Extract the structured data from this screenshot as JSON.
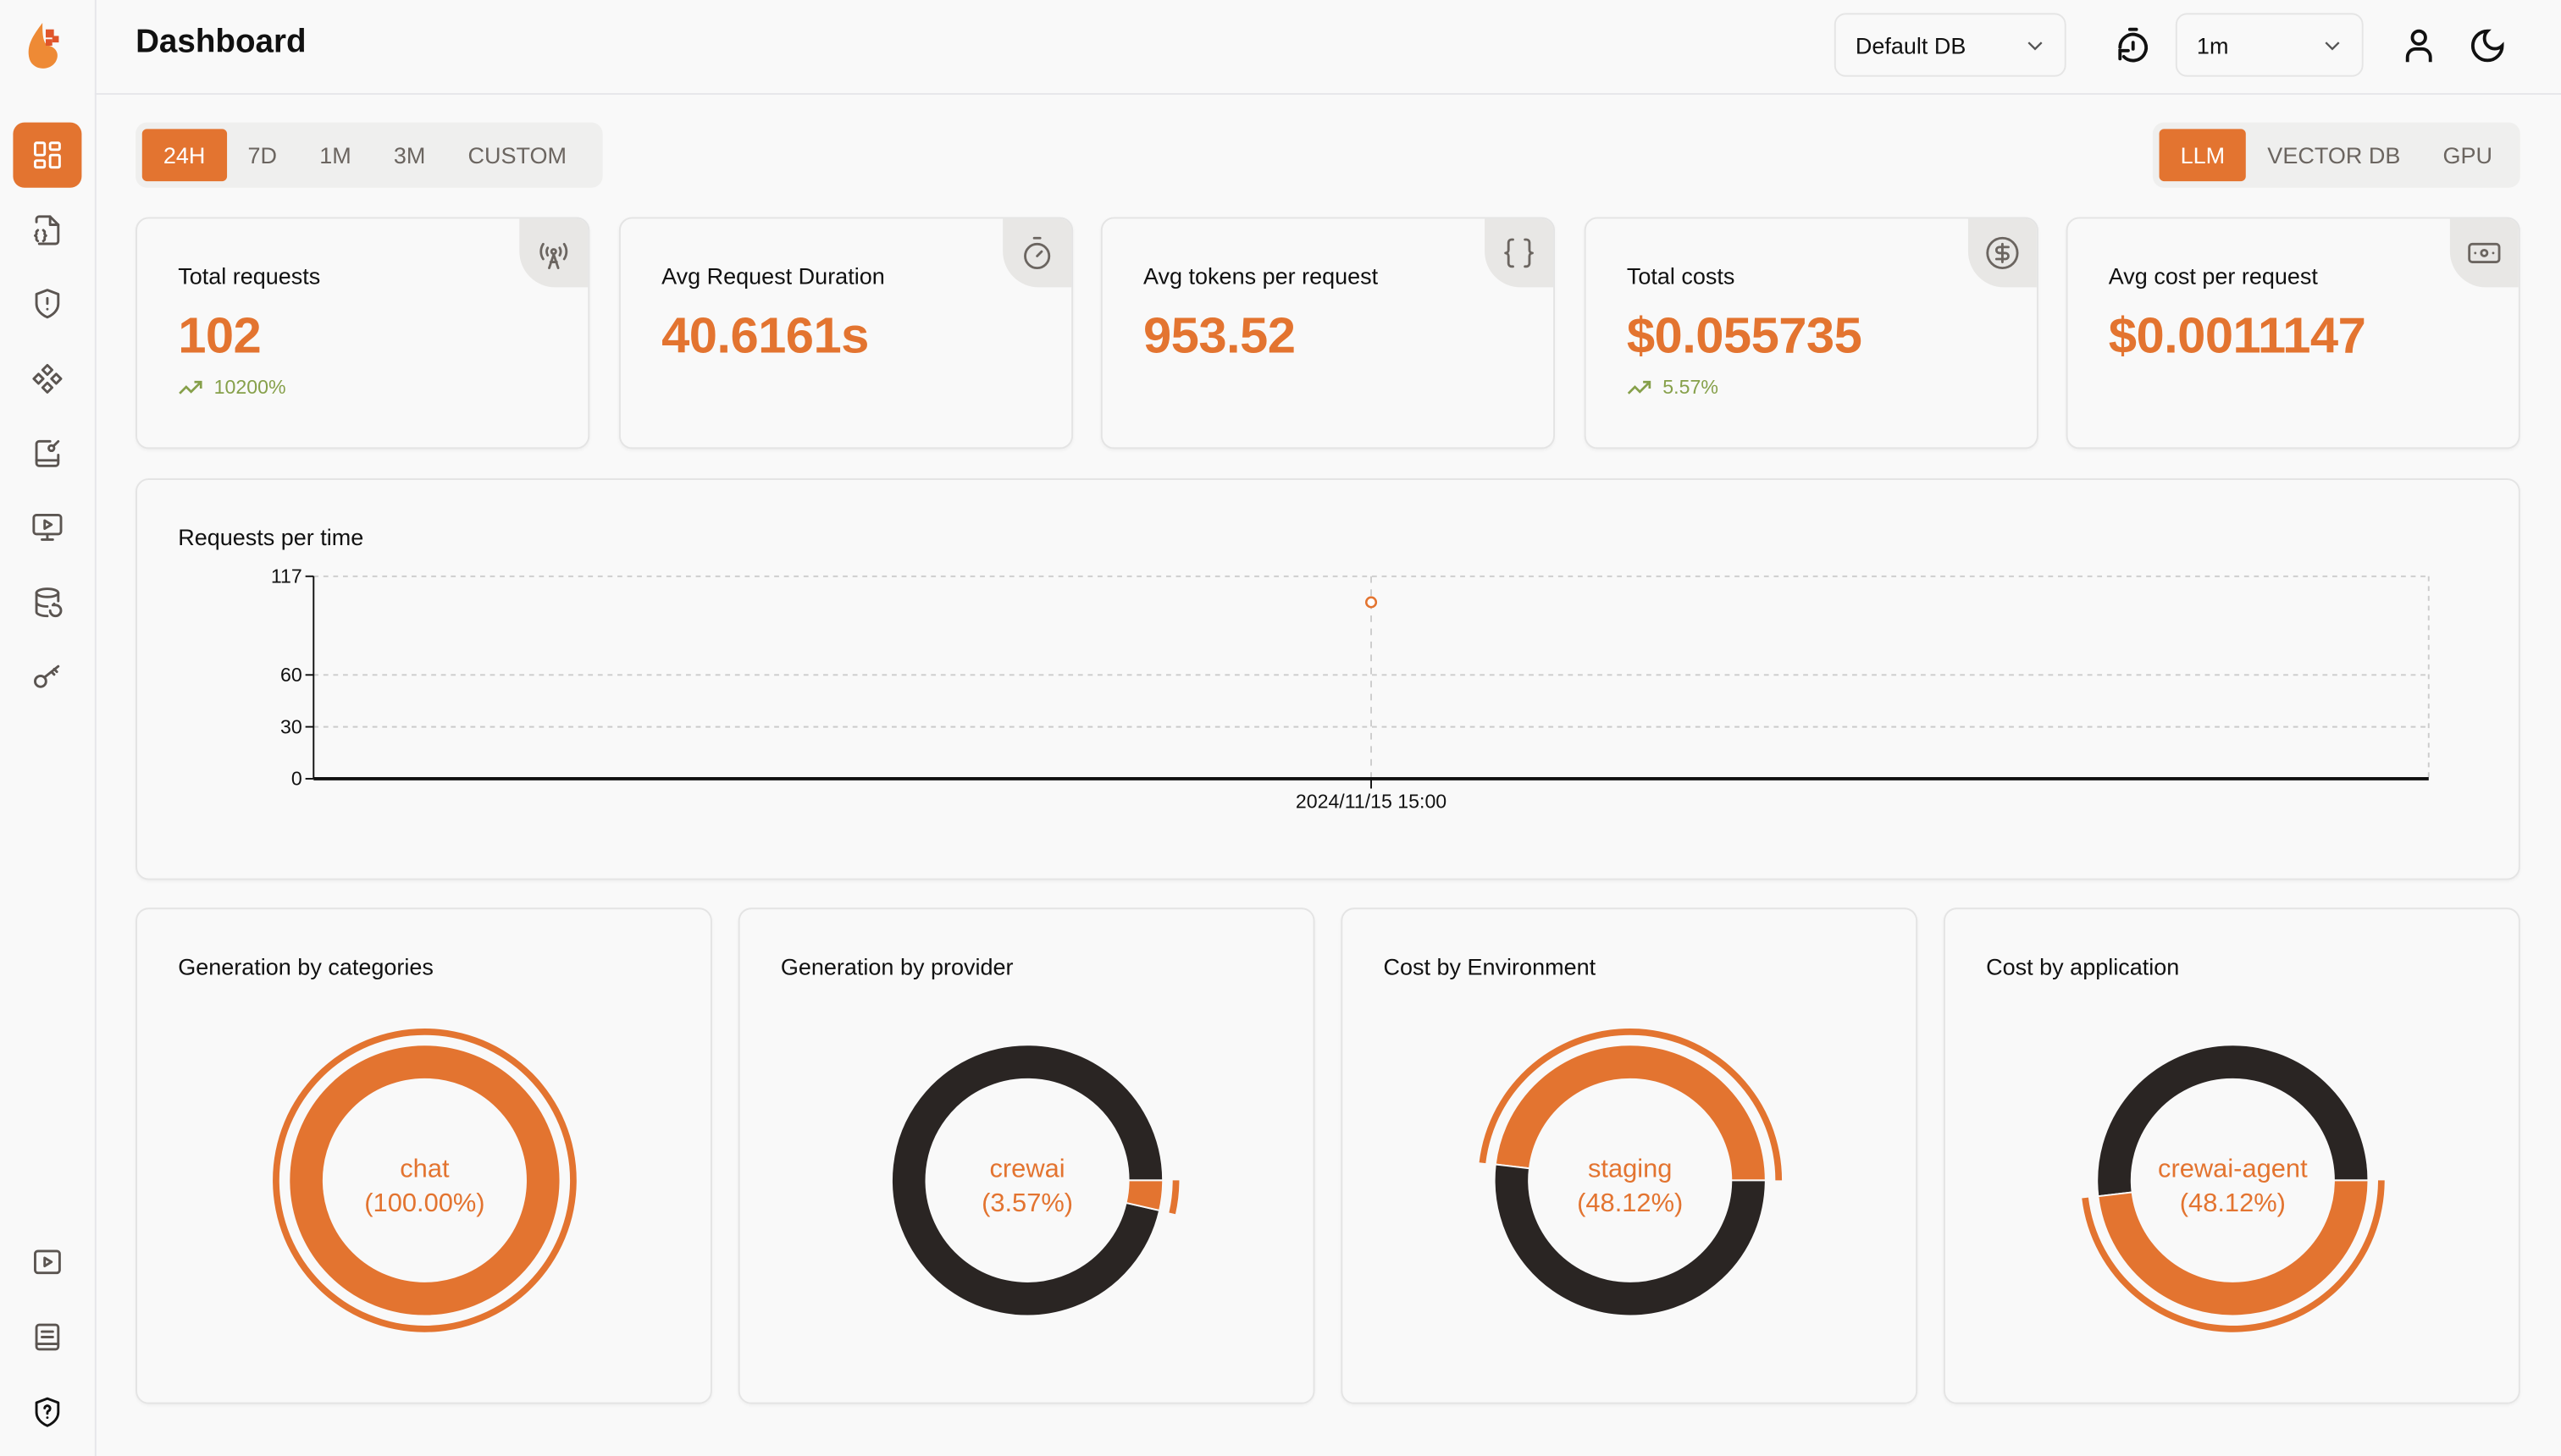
{
  "header": {
    "title": "Dashboard",
    "db_select": "Default DB",
    "refresh_select": "1m"
  },
  "sidebar": {
    "items": [
      {
        "icon": "dashboard-icon",
        "active": true
      },
      {
        "icon": "file-code-icon"
      },
      {
        "icon": "shield-alert-icon"
      },
      {
        "icon": "component-icon"
      },
      {
        "icon": "notebook-pen-icon"
      },
      {
        "icon": "monitor-play-icon"
      },
      {
        "icon": "database-backup-icon"
      },
      {
        "icon": "key-icon"
      }
    ],
    "bottom_items": [
      {
        "icon": "play-icon"
      },
      {
        "icon": "docs-icon"
      },
      {
        "icon": "shield-question-icon"
      }
    ]
  },
  "time_tabs": [
    "24H",
    "7D",
    "1M",
    "3M",
    "CUSTOM"
  ],
  "time_tab_active": "24H",
  "type_tabs": [
    "LLM",
    "VECTOR DB",
    "GPU"
  ],
  "type_tab_active": "LLM",
  "colors": {
    "accent": "#E37430",
    "dark": "#2A2523",
    "trend": "#86A04A"
  },
  "stats": [
    {
      "label": "Total requests",
      "value": "102",
      "trend": "10200%",
      "icon": "broadcast-tower-icon"
    },
    {
      "label": "Avg Request Duration",
      "value": "40.6161s",
      "icon": "timer-icon"
    },
    {
      "label": "Avg tokens per request",
      "value": "953.52",
      "icon": "braces-icon"
    },
    {
      "label": "Total costs",
      "value": "$0.055735",
      "trend": "5.57%",
      "icon": "dollar-circle-icon"
    },
    {
      "label": "Avg cost per request",
      "value": "$0.0011147",
      "icon": "banknote-icon"
    }
  ],
  "chart_data": [
    {
      "type": "line",
      "title": "Requests per time",
      "x": [
        "2024/11/15 15:00"
      ],
      "series": [
        {
          "values": [
            102
          ]
        }
      ],
      "yticks": [
        0,
        30,
        60,
        117
      ],
      "ylim": [
        0,
        117
      ],
      "grid": true
    },
    {
      "type": "pie",
      "title": "Generation by categories",
      "slices": [
        {
          "label": "chat",
          "value": 100.0
        }
      ],
      "active_label": "chat",
      "active_percent": "(100.00%)"
    },
    {
      "type": "pie",
      "title": "Generation by provider",
      "slices": [
        {
          "label": "",
          "value": 96.43
        },
        {
          "label": "crewai",
          "value": 3.57
        }
      ],
      "active_label": "crewai",
      "active_percent": "(3.57%)"
    },
    {
      "type": "pie",
      "title": "Cost by Environment",
      "slices": [
        {
          "label": "staging",
          "value": 48.12
        },
        {
          "label": "",
          "value": 51.88
        }
      ],
      "active_label": "staging",
      "active_percent": "(48.12%)"
    },
    {
      "type": "pie",
      "title": "Cost by application",
      "slices": [
        {
          "label": "",
          "value": 51.88
        },
        {
          "label": "crewai-agent",
          "value": 48.12
        }
      ],
      "active_label": "crewai-agent",
      "active_percent": "(48.12%)"
    }
  ]
}
